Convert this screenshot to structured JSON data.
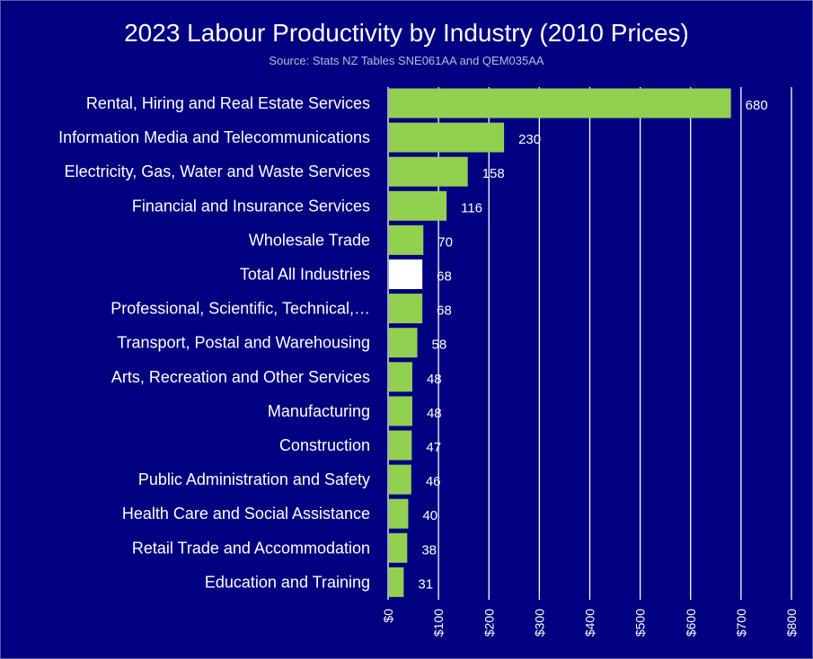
{
  "chart_data": {
    "type": "bar",
    "orientation": "horizontal",
    "title": "2023 Labour Productivity by Industry (2010 Prices)",
    "subtitle": "Source: Stats NZ Tables SNE061AA and QEM035AA",
    "categories": [
      "Rental, Hiring and Real Estate Services",
      "Information Media and Telecommunications",
      "Electricity, Gas, Water and Waste Services",
      "Financial and Insurance Services",
      "Wholesale Trade",
      "Total All Industries",
      "Professional, Scientific, Technical,…",
      "Transport, Postal and Warehousing",
      "Arts, Recreation and Other Services",
      "Manufacturing",
      "Construction",
      "Public Administration and Safety",
      "Health Care and Social Assistance",
      "Retail Trade and Accommodation",
      "Education and Training"
    ],
    "values": [
      680,
      230,
      158,
      116,
      70,
      68,
      68,
      58,
      48,
      48,
      47,
      46,
      40,
      38,
      31
    ],
    "highlight_category": "Total All Industries",
    "xlim": [
      0,
      800
    ],
    "x_ticks": [
      0,
      100,
      200,
      300,
      400,
      500,
      600,
      700,
      800
    ],
    "x_tick_labels": [
      "$0",
      "$100",
      "$200",
      "$300",
      "$400",
      "$500",
      "$600",
      "$700",
      "$800"
    ],
    "xlabel": "",
    "ylabel": "",
    "grid": "vertical",
    "legend": "none",
    "colors": {
      "background": "#000080",
      "bar": "#92D050",
      "highlight_bar": "#FFFFFF",
      "text": "#FFFFFF",
      "subtitle": "#B8BCD8",
      "grid": "#FFFFFF"
    }
  }
}
